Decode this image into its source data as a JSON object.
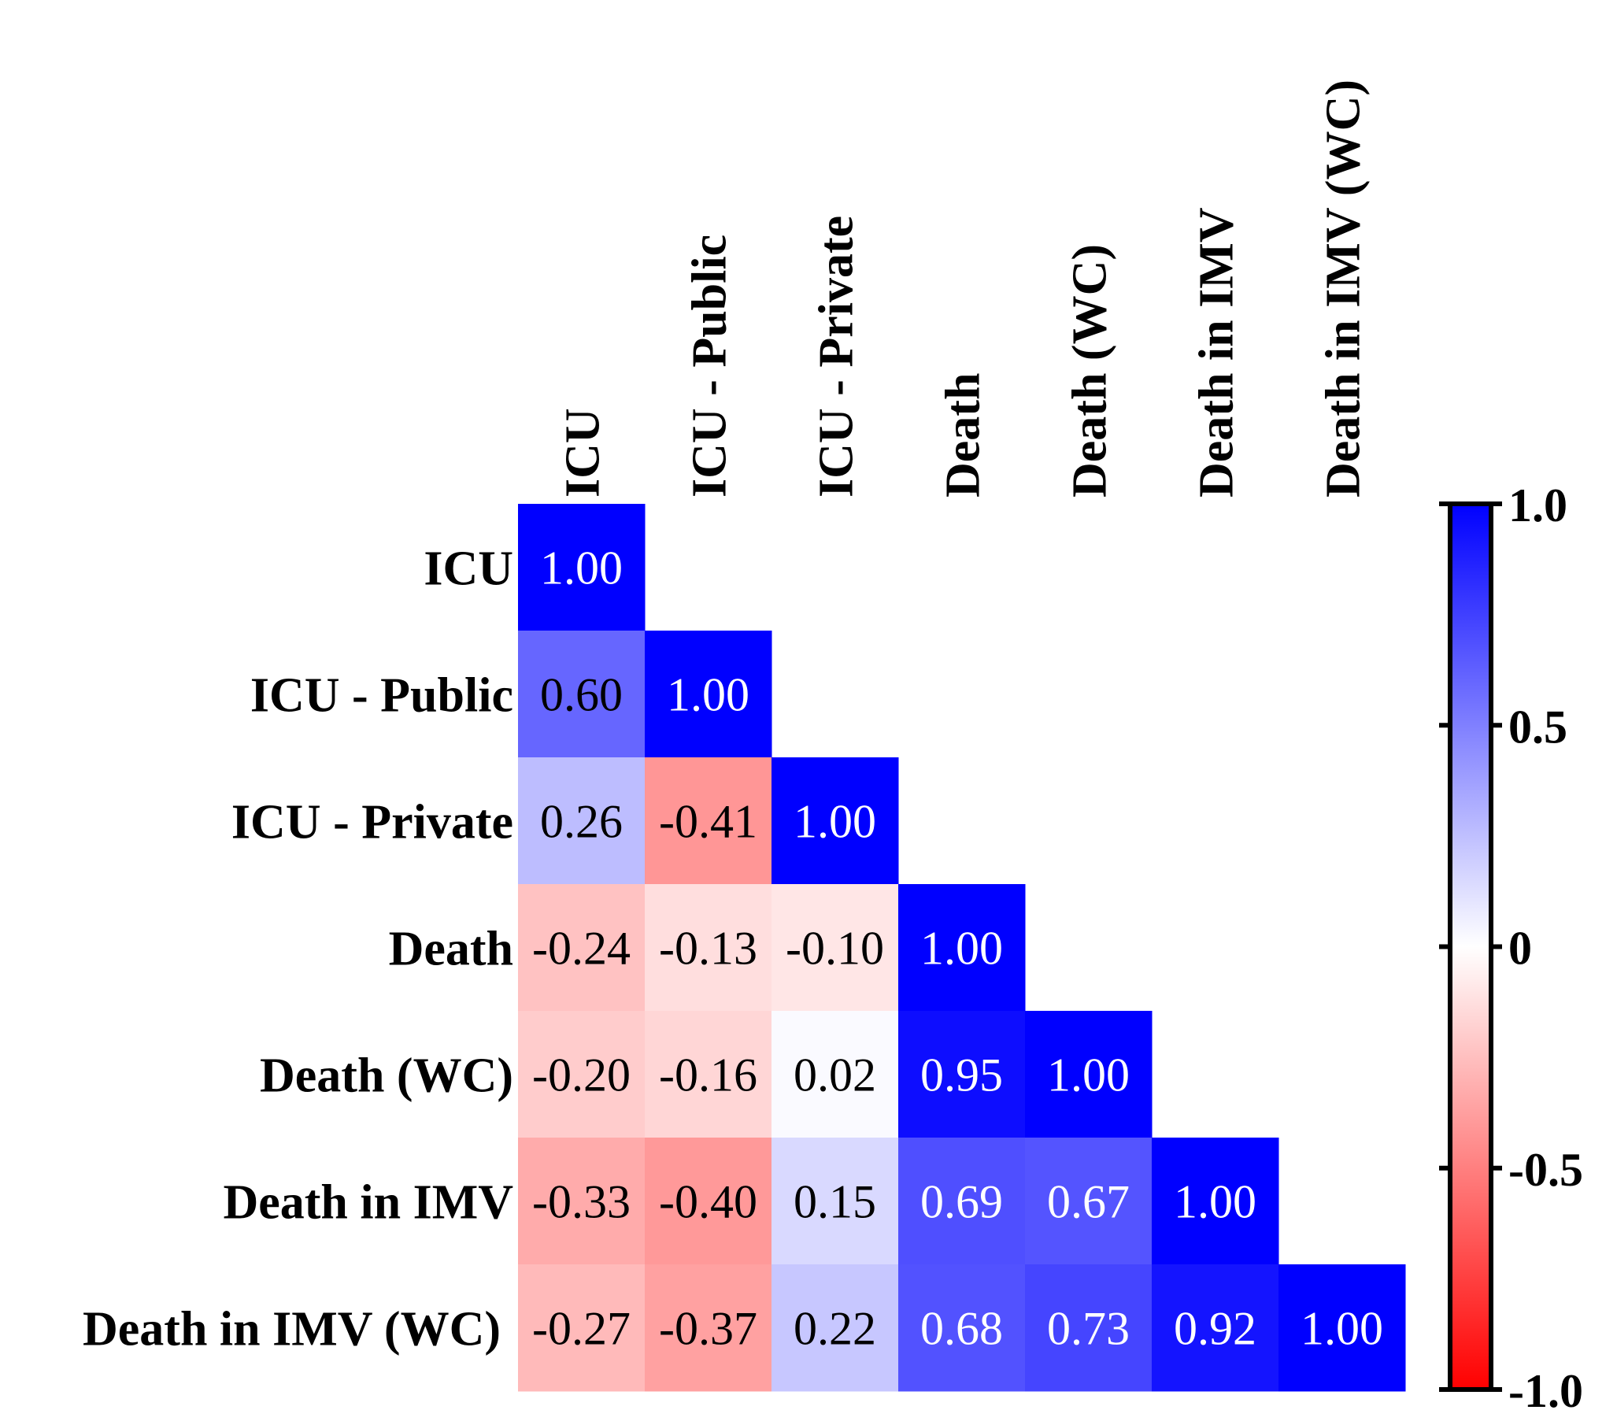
{
  "chart_data": {
    "type": "heatmap",
    "title": "",
    "variables": [
      "ICU",
      "ICU - Public",
      "ICU - Private",
      "Death",
      "Death (WC)",
      "Death in IMV",
      "Death in IMV (WC)"
    ],
    "matrix": [
      [
        1.0
      ],
      [
        0.6,
        1.0
      ],
      [
        0.26,
        -0.41,
        1.0
      ],
      [
        -0.24,
        -0.13,
        -0.1,
        1.0
      ],
      [
        -0.2,
        -0.16,
        0.02,
        0.95,
        1.0
      ],
      [
        -0.33,
        -0.4,
        0.15,
        0.69,
        0.67,
        1.0
      ],
      [
        -0.27,
        -0.37,
        0.22,
        0.68,
        0.73,
        0.92,
        1.0
      ]
    ],
    "value_labels": [
      [
        "1.00"
      ],
      [
        "0.60",
        "1.00"
      ],
      [
        "0.26",
        "-0.41",
        "1.00"
      ],
      [
        "-0.24",
        "-0.13",
        "-0.10",
        "1.00"
      ],
      [
        "-0.20",
        "-0.16",
        "0.02",
        "0.95",
        "1.00"
      ],
      [
        "-0.33",
        "-0.40",
        "0.15",
        "0.69",
        "0.67",
        "1.00"
      ],
      [
        "-0.27",
        "-0.37",
        "0.22",
        "0.68",
        "0.73",
        "0.92",
        "1.00"
      ]
    ],
    "colorbar": {
      "range": [
        -1.0,
        1.0
      ],
      "ticks": [
        1.0,
        0.5,
        0,
        -0.5,
        -1.0
      ],
      "tick_labels": [
        "1.0",
        "0.5",
        "0",
        "-0.5",
        "-1.0"
      ],
      "colors": {
        "negative": "#ff0000",
        "zero": "#ffffff",
        "positive": "#0000ff"
      }
    }
  }
}
